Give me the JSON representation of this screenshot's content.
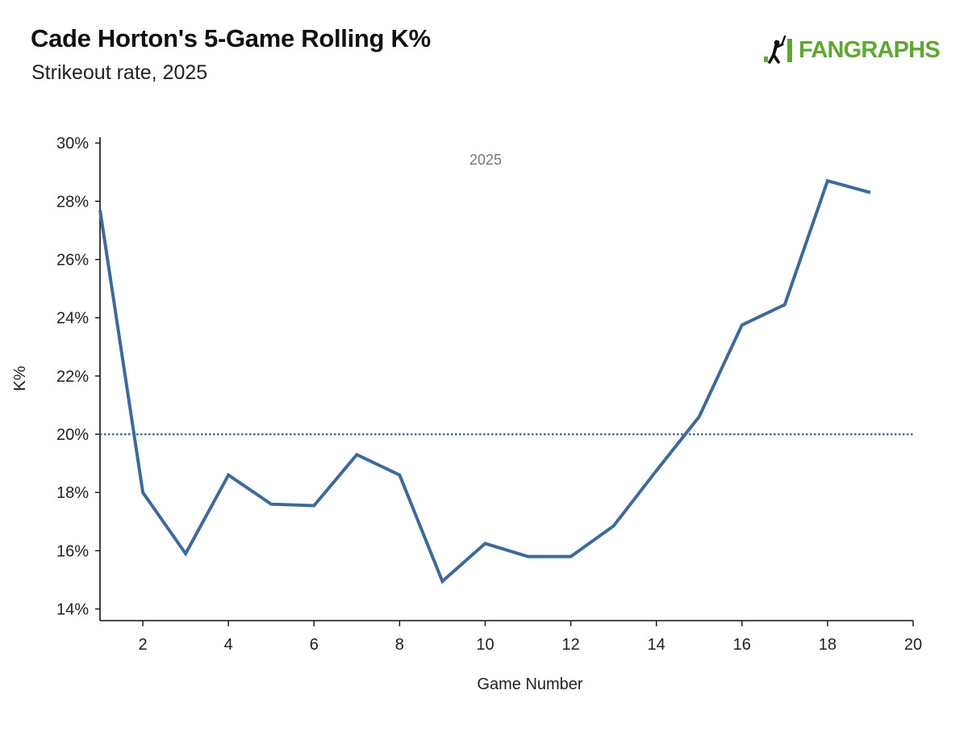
{
  "header": {
    "title": "Cade Horton's 5-Game Rolling K%",
    "subtitle": "Strikeout rate, 2025",
    "logo_text": "FANGRAPHS",
    "logo_color": "#5fa632"
  },
  "chart_data": {
    "type": "line",
    "title": "Cade Horton's 5-Game Rolling K%",
    "subtitle": "Strikeout rate, 2025",
    "xlabel": "Game Number",
    "ylabel": "K%",
    "xlim": [
      1,
      20
    ],
    "ylim": [
      13.6,
      30.2
    ],
    "x_ticks": [
      2,
      4,
      6,
      8,
      10,
      12,
      14,
      16,
      18,
      20
    ],
    "y_ticks": [
      14,
      16,
      18,
      20,
      22,
      24,
      26,
      28,
      30
    ],
    "y_tick_suffix": "%",
    "grid": false,
    "annotation": "2025",
    "reference_line": {
      "y": 20,
      "style": "dotted",
      "color": "#3d6a9a"
    },
    "series": [
      {
        "color": "#3d6a9a",
        "x": [
          1,
          2,
          3,
          4,
          5,
          6,
          7,
          8,
          9,
          10,
          11,
          12,
          13,
          14,
          15,
          16,
          17,
          18,
          19
        ],
        "values": [
          27.7,
          18.0,
          15.9,
          18.6,
          17.6,
          17.55,
          19.3,
          18.6,
          14.95,
          16.25,
          15.8,
          15.8,
          16.85,
          18.75,
          20.6,
          23.75,
          24.45,
          28.7,
          28.3
        ]
      }
    ]
  }
}
